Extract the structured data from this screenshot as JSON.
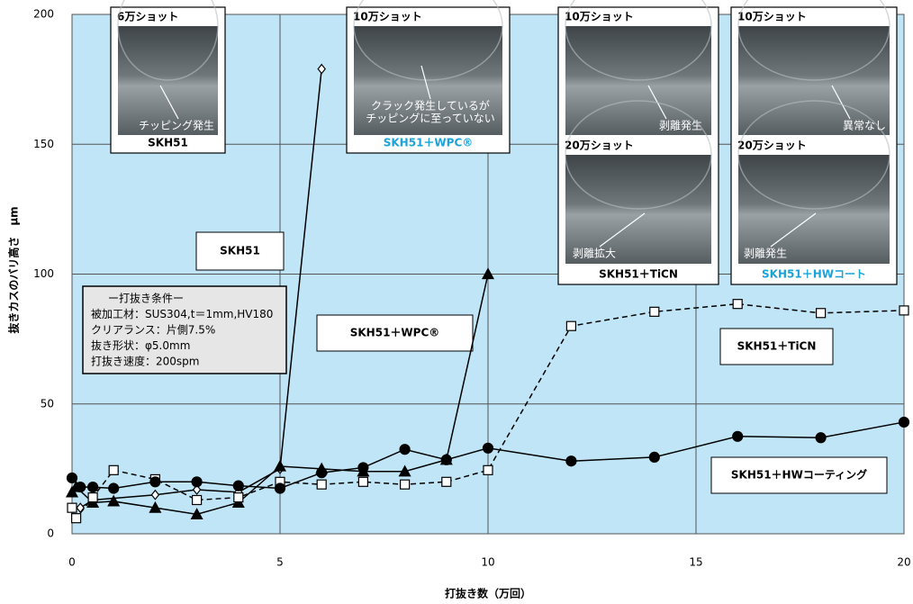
{
  "chart_data": {
    "type": "line",
    "xlabel": "打抜き数（万回）",
    "ylabel": "抜きカスのバリ高さ　μm",
    "xlim": [
      0,
      20
    ],
    "xticks": [
      0,
      5,
      10,
      15,
      20
    ],
    "ylim": [
      0,
      200
    ],
    "yticks": [
      0,
      50,
      100,
      150,
      200
    ],
    "grid": true,
    "background": "#bfe5f6",
    "series": [
      {
        "name": "SKH51",
        "color": "#000000",
        "marker": "diamond",
        "dashed": false,
        "x": [
          0,
          0.2,
          0.5,
          2,
          3,
          4,
          5,
          6
        ],
        "values": [
          10,
          10,
          13,
          15,
          17,
          16,
          25,
          179
        ]
      },
      {
        "name": "SKH51＋WPC®",
        "color": "#000000",
        "marker": "triangle",
        "dashed": false,
        "x": [
          0,
          0.1,
          0.5,
          1,
          2,
          3,
          4,
          5,
          6,
          7,
          8,
          9,
          10
        ],
        "values": [
          16,
          18,
          12,
          12.5,
          10,
          7.5,
          12,
          26,
          25,
          24,
          24,
          28.5,
          100
        ]
      },
      {
        "name": "SKH51＋TiCN",
        "color": "#000000",
        "marker": "square",
        "dashed": true,
        "x": [
          0,
          0.1,
          0.5,
          1,
          2,
          3,
          4,
          5,
          6,
          7,
          8,
          9,
          10,
          12,
          14,
          16,
          18,
          20
        ],
        "values": [
          10,
          6,
          14,
          24.5,
          21,
          13,
          14,
          20,
          19,
          20,
          19,
          20,
          24.5,
          80,
          85.5,
          88.5,
          85,
          86
        ]
      },
      {
        "name": "SKH51＋HWコーティング",
        "color": "#000000",
        "marker": "circle",
        "dashed": false,
        "x": [
          0,
          0.2,
          0.5,
          1,
          2,
          3,
          4,
          5,
          6,
          7,
          8,
          9,
          10,
          12,
          14,
          16,
          18,
          20
        ],
        "values": [
          21.5,
          18,
          18,
          17.5,
          20,
          20,
          18.5,
          17.5,
          23.5,
          25.5,
          32.5,
          28.5,
          33,
          28,
          29.5,
          37.5,
          37,
          43
        ]
      }
    ],
    "conditions": [
      "ー打抜き条件ー",
      "被加工材：SUS304,t＝1mm,HV180",
      "クリアランス：片側7.5%",
      "抜き形状：φ5.0mm",
      "打抜き速度：200spm"
    ],
    "insets": [
      {
        "photos": [
          {
            "title": "6万ショット",
            "notes": [
              "チッピング発生"
            ]
          }
        ],
        "caption": "SKH51",
        "caption_color": "#000000"
      },
      {
        "photos": [
          {
            "title": "10万ショット",
            "notes": [
              "クラック発生しているが",
              "チッピングに至っていない"
            ]
          }
        ],
        "caption": "SKH51＋WPC®",
        "caption_color": "#1aa3d9"
      },
      {
        "photos": [
          {
            "title": "10万ショット",
            "notes": [
              "剥離発生"
            ]
          },
          {
            "title": "20万ショット",
            "notes": [
              "剥離拡大"
            ]
          }
        ],
        "caption": "SKH51＋TiCN",
        "caption_color": "#000000"
      },
      {
        "photos": [
          {
            "title": "10万ショット",
            "notes": [
              "異常なし"
            ]
          },
          {
            "title": "20万ショット",
            "notes": [
              "剥離発生"
            ]
          }
        ],
        "caption": "SKH51＋HWコート",
        "caption_color": "#1aa3d9"
      }
    ]
  }
}
